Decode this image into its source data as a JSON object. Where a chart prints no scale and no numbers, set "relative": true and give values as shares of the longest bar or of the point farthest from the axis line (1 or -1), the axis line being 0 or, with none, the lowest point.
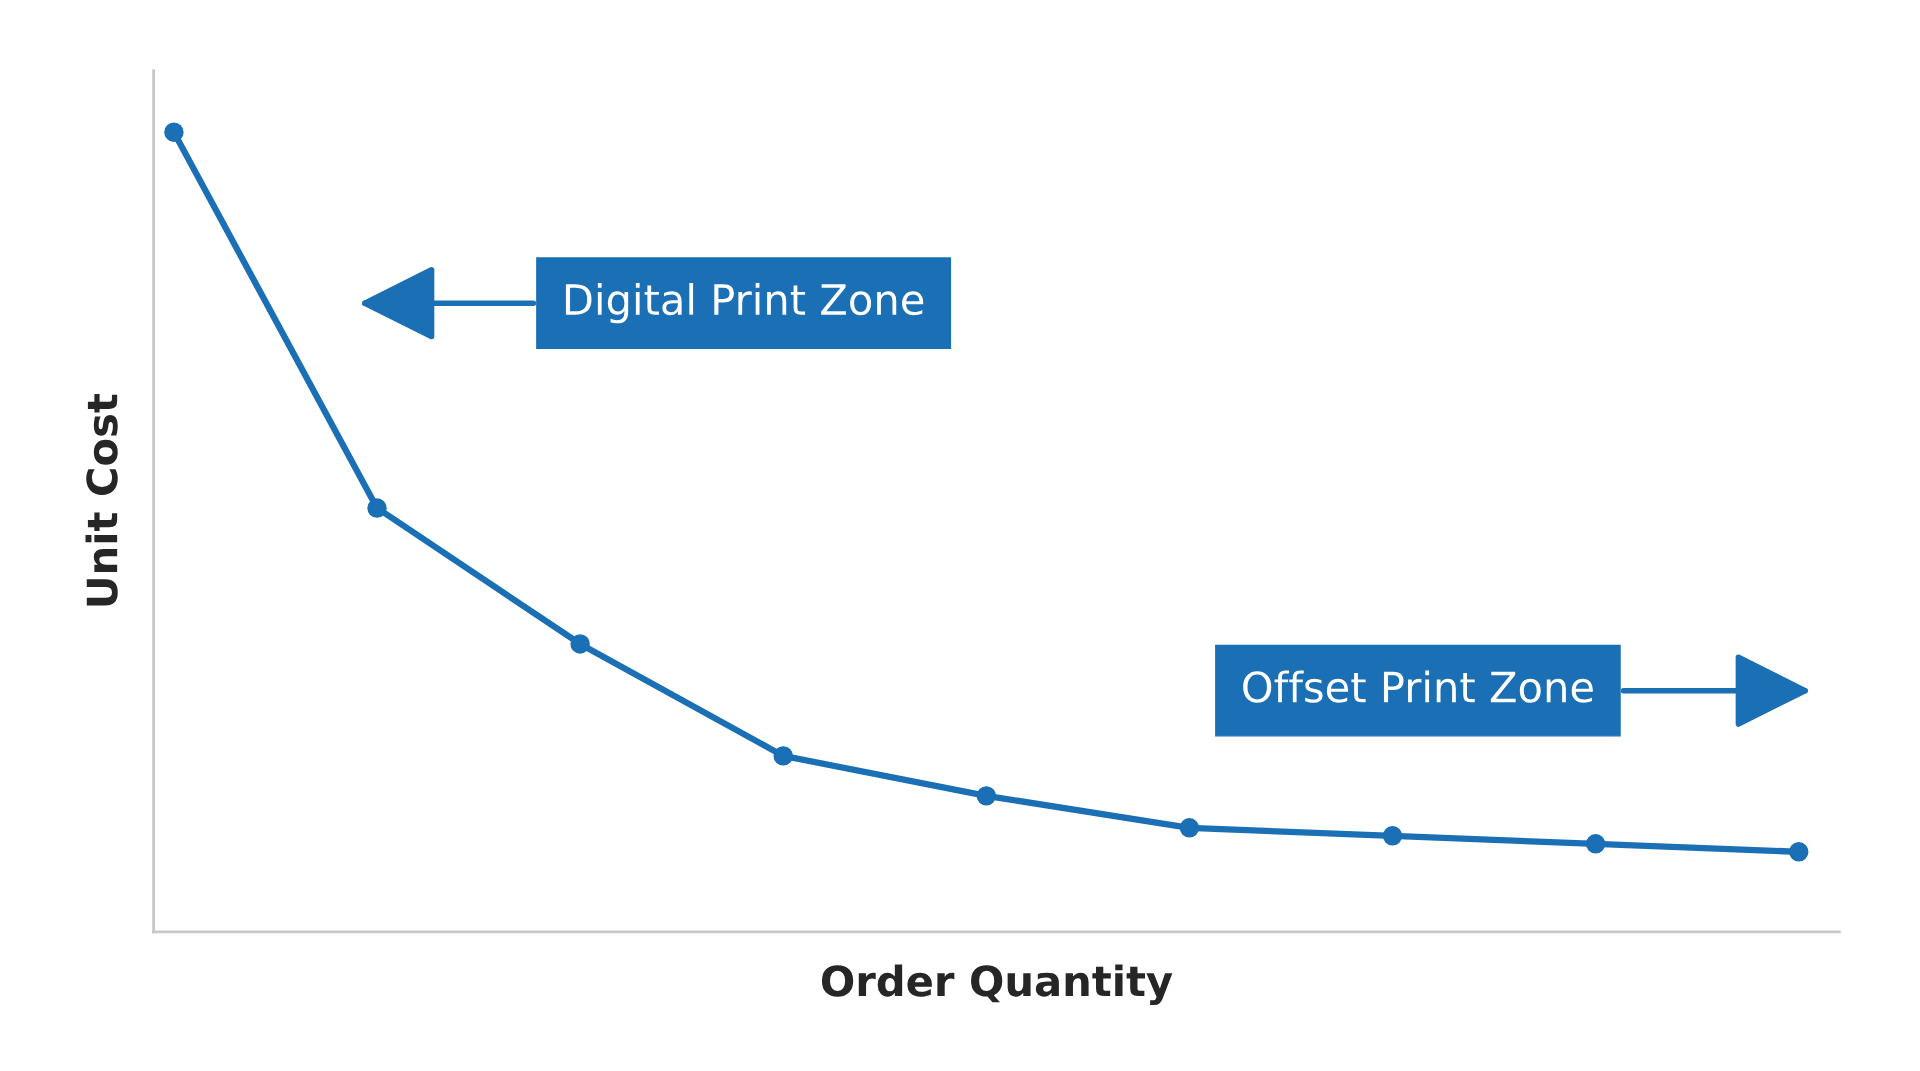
{
  "chart_data": {
    "type": "line",
    "xlabel": "Order Quantity",
    "ylabel": "Unit Cost",
    "relative": true,
    "categories": [
      null,
      null,
      null,
      null,
      null,
      null,
      null,
      null,
      null
    ],
    "series": [
      {
        "color": "#1a6fb5",
        "values": [
          1,
          0.53,
          0.36,
          0.22,
          0.17,
          0.13,
          0.12,
          0.11,
          0.1
        ]
      }
    ],
    "marker": "circle",
    "line_style": "solid",
    "grid": false,
    "annotations": [
      "Digital Print Zone",
      "Offset Print Zone"
    ]
  }
}
